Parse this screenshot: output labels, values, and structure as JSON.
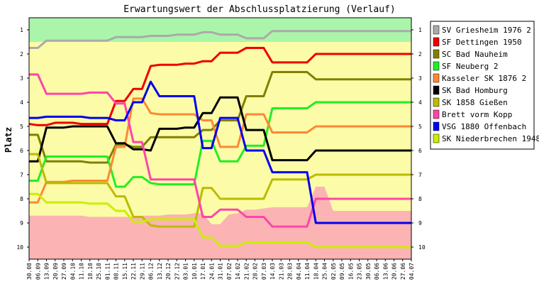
{
  "chart_data": {
    "type": "line",
    "title": "Erwartungswert der Abschlussplatzierung (Verlauf)",
    "ylabel": "Platz",
    "xlabel": "",
    "ylim": [
      0.5,
      10.5
    ],
    "y_ticks": [
      "1",
      "2",
      "3",
      "4",
      "5",
      "6",
      "7",
      "8",
      "9",
      "10"
    ],
    "y_axis_reversed": true,
    "grid": false,
    "legend_position": "right",
    "x": [
      "30.08",
      "06.09",
      "13.09",
      "20.09",
      "27.09",
      "04.10",
      "11.10",
      "18.10",
      "25.10",
      "01.11",
      "08.11",
      "15.11",
      "22.11",
      "29.11",
      "06.12",
      "13.12",
      "20.12",
      "27.12",
      "03.01",
      "10.01",
      "17.01",
      "24.01",
      "31.01",
      "07.02",
      "14.02",
      "21.02",
      "28.02",
      "07.03",
      "14.03",
      "21.03",
      "28.03",
      "04.04",
      "11.04",
      "18.04",
      "25.04",
      "02.05",
      "09.05",
      "16.05",
      "23.05",
      "30.05",
      "06.06",
      "13.06",
      "20.06",
      "27.06",
      "04.07"
    ],
    "background_bands": {
      "top_green": [
        1.5,
        1.5,
        1.5,
        1.5,
        1.5,
        1.5,
        1.5,
        1.5,
        1.5,
        1.5,
        1.5,
        1.5,
        1.5,
        1.5,
        1.5,
        1.5,
        1.5,
        1.5,
        1.5,
        1.5,
        1.5,
        1.5,
        1.5,
        1.5,
        1.5,
        1.5,
        1.5,
        1.5,
        1.5,
        1.5,
        1.5,
        1.5,
        1.5,
        1.5,
        1.5,
        1.5,
        1.5,
        1.5,
        1.5,
        1.5,
        1.5,
        1.5,
        1.5,
        1.5,
        1.5
      ],
      "bottom_red": [
        8.7,
        8.7,
        8.7,
        8.7,
        8.7,
        8.7,
        8.7,
        8.75,
        8.75,
        8.75,
        8.75,
        8.75,
        8.75,
        8.7,
        8.7,
        8.7,
        8.65,
        8.65,
        8.65,
        8.6,
        8.6,
        9.05,
        9.05,
        8.65,
        8.6,
        8.45,
        8.45,
        8.4,
        8.35,
        8.35,
        8.35,
        8.35,
        8.35,
        7.5,
        7.5,
        8.5,
        8.5,
        8.5,
        8.5,
        8.5,
        8.5,
        8.5,
        8.5,
        8.5,
        8.5
      ]
    },
    "series": [
      {
        "name": "SV Griesheim 1976 2",
        "color": "#aaaaaa",
        "values": [
          1.75,
          1.75,
          1.45,
          1.45,
          1.45,
          1.45,
          1.45,
          1.45,
          1.45,
          1.45,
          1.3,
          1.3,
          1.3,
          1.3,
          1.25,
          1.25,
          1.25,
          1.2,
          1.2,
          1.2,
          1.1,
          1.1,
          1.2,
          1.2,
          1.2,
          1.35,
          1.35,
          1.35,
          1.05,
          1.05,
          1.05,
          1.05,
          1.05,
          1.05,
          1.05,
          1.05,
          1.05,
          1.05,
          1.05,
          1.05,
          1.05,
          1.05,
          1.05,
          1.05,
          1.05
        ]
      },
      {
        "name": "SF Dettingen 1950",
        "color": "#ee0000",
        "values": [
          4.9,
          4.95,
          4.95,
          4.85,
          4.85,
          4.85,
          4.9,
          4.9,
          4.9,
          4.9,
          3.95,
          3.95,
          3.45,
          3.45,
          2.5,
          2.45,
          2.45,
          2.45,
          2.4,
          2.4,
          2.3,
          2.3,
          1.95,
          1.95,
          1.95,
          1.75,
          1.75,
          1.75,
          2.35,
          2.35,
          2.35,
          2.35,
          2.35,
          2.0,
          2.0,
          2.0,
          2.0,
          2.0,
          2.0,
          2.0,
          2.0,
          2.0,
          2.0,
          2.0,
          2.0
        ]
      },
      {
        "name": "SC Bad Nauheim",
        "color": "#808000",
        "values": [
          5.35,
          5.35,
          6.45,
          6.45,
          6.45,
          6.45,
          6.45,
          6.5,
          6.5,
          6.5,
          5.75,
          5.75,
          5.85,
          5.85,
          5.45,
          5.45,
          5.45,
          5.45,
          5.45,
          5.45,
          5.15,
          5.15,
          4.75,
          4.75,
          4.75,
          3.75,
          3.75,
          3.75,
          2.75,
          2.75,
          2.75,
          2.75,
          2.75,
          3.05,
          3.05,
          3.05,
          3.05,
          3.05,
          3.05,
          3.05,
          3.05,
          3.05,
          3.05,
          3.05,
          3.05
        ]
      },
      {
        "name": "SF Neuberg 2",
        "color": "#22ee22",
        "values": [
          7.25,
          7.25,
          6.25,
          6.25,
          6.25,
          6.25,
          6.25,
          6.25,
          6.25,
          6.25,
          7.5,
          7.5,
          7.1,
          7.1,
          7.35,
          7.4,
          7.4,
          7.4,
          7.4,
          7.4,
          5.6,
          5.6,
          6.45,
          6.45,
          6.45,
          5.8,
          5.8,
          5.8,
          4.25,
          4.25,
          4.25,
          4.25,
          4.25,
          4.0,
          4.0,
          4.0,
          4.0,
          4.0,
          4.0,
          4.0,
          4.0,
          4.0,
          4.0,
          4.0,
          4.0
        ]
      },
      {
        "name": "Kasseler SK 1876 2",
        "color": "#ff8833",
        "values": [
          8.15,
          8.15,
          7.3,
          7.3,
          7.3,
          7.25,
          7.25,
          7.25,
          7.25,
          7.25,
          5.85,
          5.85,
          3.85,
          3.85,
          4.45,
          4.5,
          4.5,
          4.5,
          4.5,
          4.5,
          4.75,
          4.75,
          5.85,
          5.85,
          5.85,
          4.5,
          4.5,
          4.5,
          5.25,
          5.25,
          5.25,
          5.25,
          5.25,
          5.0,
          5.0,
          5.0,
          5.0,
          5.0,
          5.0,
          5.0,
          5.0,
          5.0,
          5.0,
          5.0,
          5.0
        ]
      },
      {
        "name": "SK Bad Homburg",
        "color": "#000000",
        "values": [
          6.45,
          6.45,
          5.05,
          5.05,
          5.05,
          5.0,
          5.0,
          5.0,
          5.0,
          5.0,
          5.7,
          5.7,
          5.95,
          5.95,
          6.0,
          5.1,
          5.1,
          5.1,
          5.05,
          5.05,
          4.45,
          4.45,
          3.8,
          3.8,
          3.8,
          5.15,
          5.15,
          5.15,
          6.4,
          6.4,
          6.4,
          6.4,
          6.4,
          6.0,
          6.0,
          6.0,
          6.0,
          6.0,
          6.0,
          6.0,
          6.0,
          6.0,
          6.0,
          6.0,
          6.0
        ]
      },
      {
        "name": "SK 1858 Gießen",
        "color": "#bbbb00",
        "values": [
          6.15,
          6.15,
          7.35,
          7.35,
          7.35,
          7.35,
          7.35,
          7.35,
          7.35,
          7.35,
          7.9,
          7.9,
          8.75,
          8.75,
          9.1,
          9.15,
          9.15,
          9.15,
          9.15,
          9.15,
          7.55,
          7.55,
          8.0,
          8.0,
          8.0,
          8.0,
          8.0,
          8.0,
          7.2,
          7.2,
          7.2,
          7.2,
          7.2,
          7.0,
          7.0,
          7.0,
          7.0,
          7.0,
          7.0,
          7.0,
          7.0,
          7.0,
          7.0,
          7.0,
          7.0
        ]
      },
      {
        "name": "Brett vorm Kopp",
        "color": "#ff44aa",
        "values": [
          2.85,
          2.85,
          3.65,
          3.65,
          3.65,
          3.65,
          3.65,
          3.6,
          3.6,
          3.6,
          4.05,
          4.05,
          5.65,
          5.65,
          7.2,
          7.2,
          7.2,
          7.2,
          7.2,
          7.2,
          8.75,
          8.75,
          8.45,
          8.45,
          8.45,
          8.75,
          8.75,
          8.75,
          9.15,
          9.15,
          9.15,
          9.15,
          9.15,
          8.0,
          8.0,
          8.0,
          8.0,
          8.0,
          8.0,
          8.0,
          8.0,
          8.0,
          8.0,
          8.0,
          8.0
        ]
      },
      {
        "name": "VSG 1880 Offenbach",
        "color": "#0000ee",
        "values": [
          4.65,
          4.65,
          4.6,
          4.6,
          4.6,
          4.6,
          4.6,
          4.65,
          4.65,
          4.65,
          4.75,
          4.75,
          4.0,
          4.0,
          3.15,
          3.75,
          3.75,
          3.75,
          3.75,
          3.75,
          5.9,
          5.9,
          4.65,
          4.65,
          4.65,
          6.0,
          6.0,
          6.0,
          6.9,
          6.9,
          6.9,
          6.9,
          6.9,
          9.0,
          9.0,
          9.0,
          9.0,
          9.0,
          9.0,
          9.0,
          9.0,
          9.0,
          9.0,
          9.0,
          9.0
        ]
      },
      {
        "name": "SK Niederbrechen 1948",
        "color": "#ccee00",
        "values": [
          7.8,
          7.8,
          8.15,
          8.15,
          8.15,
          8.15,
          8.15,
          8.2,
          8.2,
          8.2,
          8.5,
          8.5,
          8.95,
          8.95,
          8.85,
          8.85,
          8.85,
          8.85,
          8.85,
          8.85,
          9.6,
          9.6,
          9.95,
          9.95,
          9.95,
          9.8,
          9.8,
          9.8,
          9.8,
          9.8,
          9.8,
          9.8,
          9.8,
          10.0,
          10.0,
          10.0,
          10.0,
          10.0,
          10.0,
          10.0,
          10.0,
          10.0,
          10.0,
          10.0,
          10.0
        ]
      }
    ],
    "colors": {
      "band_top": "#aaf5aa",
      "band_mid": "#fbfba8",
      "band_bottom": "#fbb3b3",
      "frame": "#000000"
    }
  }
}
